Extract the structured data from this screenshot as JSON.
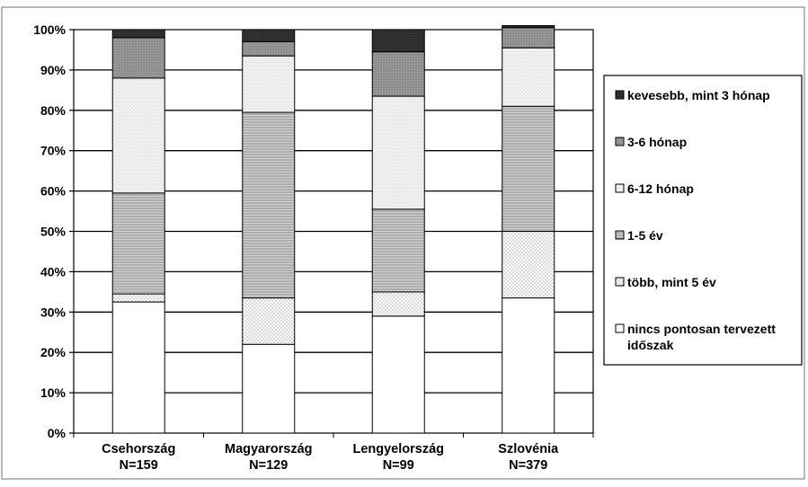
{
  "chart_data": {
    "type": "bar",
    "stacked": true,
    "orientation": "vertical",
    "categories": [
      "Csehország",
      "Magyarország",
      "Lengyelország",
      "Szlovénia"
    ],
    "category_sublabels": [
      "N=159",
      "N=129",
      "N=99",
      "N=379"
    ],
    "y_ticks": [
      "0%",
      "10%",
      "20%",
      "30%",
      "40%",
      "50%",
      "60%",
      "70%",
      "80%",
      "90%",
      "100%"
    ],
    "ylim": [
      0,
      100
    ],
    "grid": true,
    "legend_position": "right",
    "series": [
      {
        "name": "nincs pontosan tervezett időszak",
        "legend_lines": [
          "nincs pontosan tervezett",
          "időszak"
        ],
        "pattern": "blank",
        "values": [
          32.5,
          22,
          29,
          33.5
        ]
      },
      {
        "name": "több, mint 5 év",
        "legend_lines": [
          "több, mint 5 év"
        ],
        "pattern": "dots",
        "values": [
          2,
          11.5,
          6,
          16.5
        ]
      },
      {
        "name": "1-5 év",
        "legend_lines": [
          "1-5 év"
        ],
        "pattern": "hlines",
        "values": [
          25,
          46,
          20.5,
          31
        ]
      },
      {
        "name": "6-12 hónap",
        "legend_lines": [
          "6-12 hónap"
        ],
        "pattern": "light",
        "values": [
          28.5,
          14,
          28,
          14.5
        ]
      },
      {
        "name": "3-6 hónap",
        "legend_lines": [
          "3-6 hónap"
        ],
        "pattern": "medium",
        "values": [
          10,
          3.5,
          11,
          5
        ]
      },
      {
        "name": "kevesebb, mint 3 hónap",
        "legend_lines": [
          "kevesebb, mint 3 hónap"
        ],
        "pattern": "dark",
        "values": [
          2,
          3,
          5.5,
          0.5
        ]
      }
    ]
  }
}
